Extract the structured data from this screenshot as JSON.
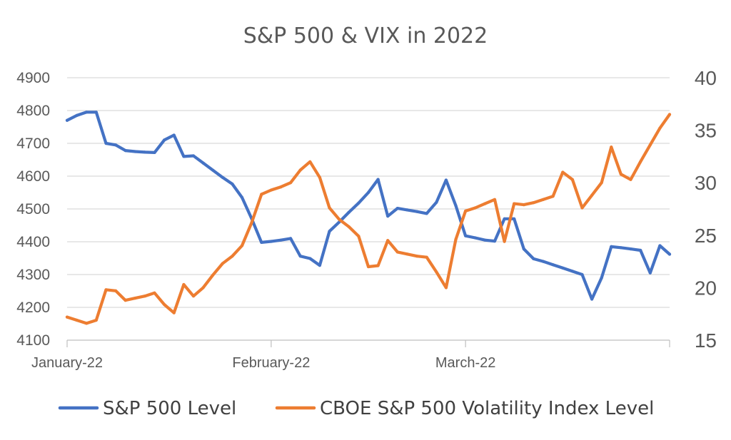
{
  "chart_data": {
    "type": "line",
    "title": "S&P 500 & VIX in 2022",
    "xlabel": "",
    "ylabel": "",
    "x_tick_labels": [
      "January-22",
      "February-22",
      "March-22"
    ],
    "x_tick_index": [
      0,
      21,
      41
    ],
    "n_points": 63,
    "ylim_left": [
      4100,
      4900
    ],
    "yticks_left": [
      4100,
      4200,
      4300,
      4400,
      4500,
      4600,
      4700,
      4800,
      4900
    ],
    "ylim_right": [
      15,
      40
    ],
    "yticks_right": [
      15,
      20,
      25,
      30,
      35,
      40
    ],
    "grid": true,
    "legend_position": "bottom",
    "series": [
      {
        "name": "S&P 500 Level",
        "axis": "left",
        "color": "#4472c4",
        "values": [
          4770,
          4785,
          4795,
          4795,
          4700,
          4695,
          4678,
          4675,
          4673,
          4672,
          4710,
          4725,
          4660,
          4662,
          4640,
          4618,
          4596,
          4576,
          4535,
          4470,
          4398,
          4401,
          4405,
          4410,
          4356,
          4349,
          4328,
          4432,
          4460,
          4490,
          4518,
          4550,
          4590,
          4478,
          4502,
          4497,
          4492,
          4486,
          4520,
          4588,
          4510,
          4418,
          4412,
          4405,
          4402,
          4470,
          4470,
          4378,
          4348,
          4340,
          4330,
          4320,
          4310,
          4300,
          4225,
          4290,
          4385,
          4382,
          4378,
          4374,
          4305,
          4388,
          4362
        ]
      },
      {
        "name": "CBOE S&P 500 Volatility Index Level",
        "axis": "right",
        "color": "#ed7d31",
        "values": [
          17.2,
          16.9,
          16.6,
          16.9,
          19.8,
          19.7,
          18.8,
          19.0,
          19.2,
          19.5,
          18.4,
          17.6,
          20.3,
          19.2,
          20.0,
          21.2,
          22.3,
          23.0,
          24.0,
          26.2,
          28.9,
          29.3,
          29.6,
          30.0,
          31.2,
          32.0,
          30.5,
          27.6,
          26.5,
          25.8,
          24.9,
          22.0,
          22.1,
          24.5,
          23.4,
          23.2,
          23.0,
          22.9,
          21.5,
          20.0,
          24.6,
          27.3,
          27.6,
          28.0,
          28.4,
          24.4,
          28.0,
          27.9,
          28.1,
          28.4,
          28.7,
          31.0,
          30.3,
          27.6,
          28.8,
          30.0,
          33.4,
          30.8,
          30.3,
          32.0,
          33.6,
          35.2,
          36.5
        ]
      }
    ]
  },
  "legend": {
    "items": [
      {
        "label": "S&P 500 Level",
        "color": "#4472c4"
      },
      {
        "label": "CBOE S&P 500 Volatility Index Level",
        "color": "#ed7d31"
      }
    ]
  }
}
